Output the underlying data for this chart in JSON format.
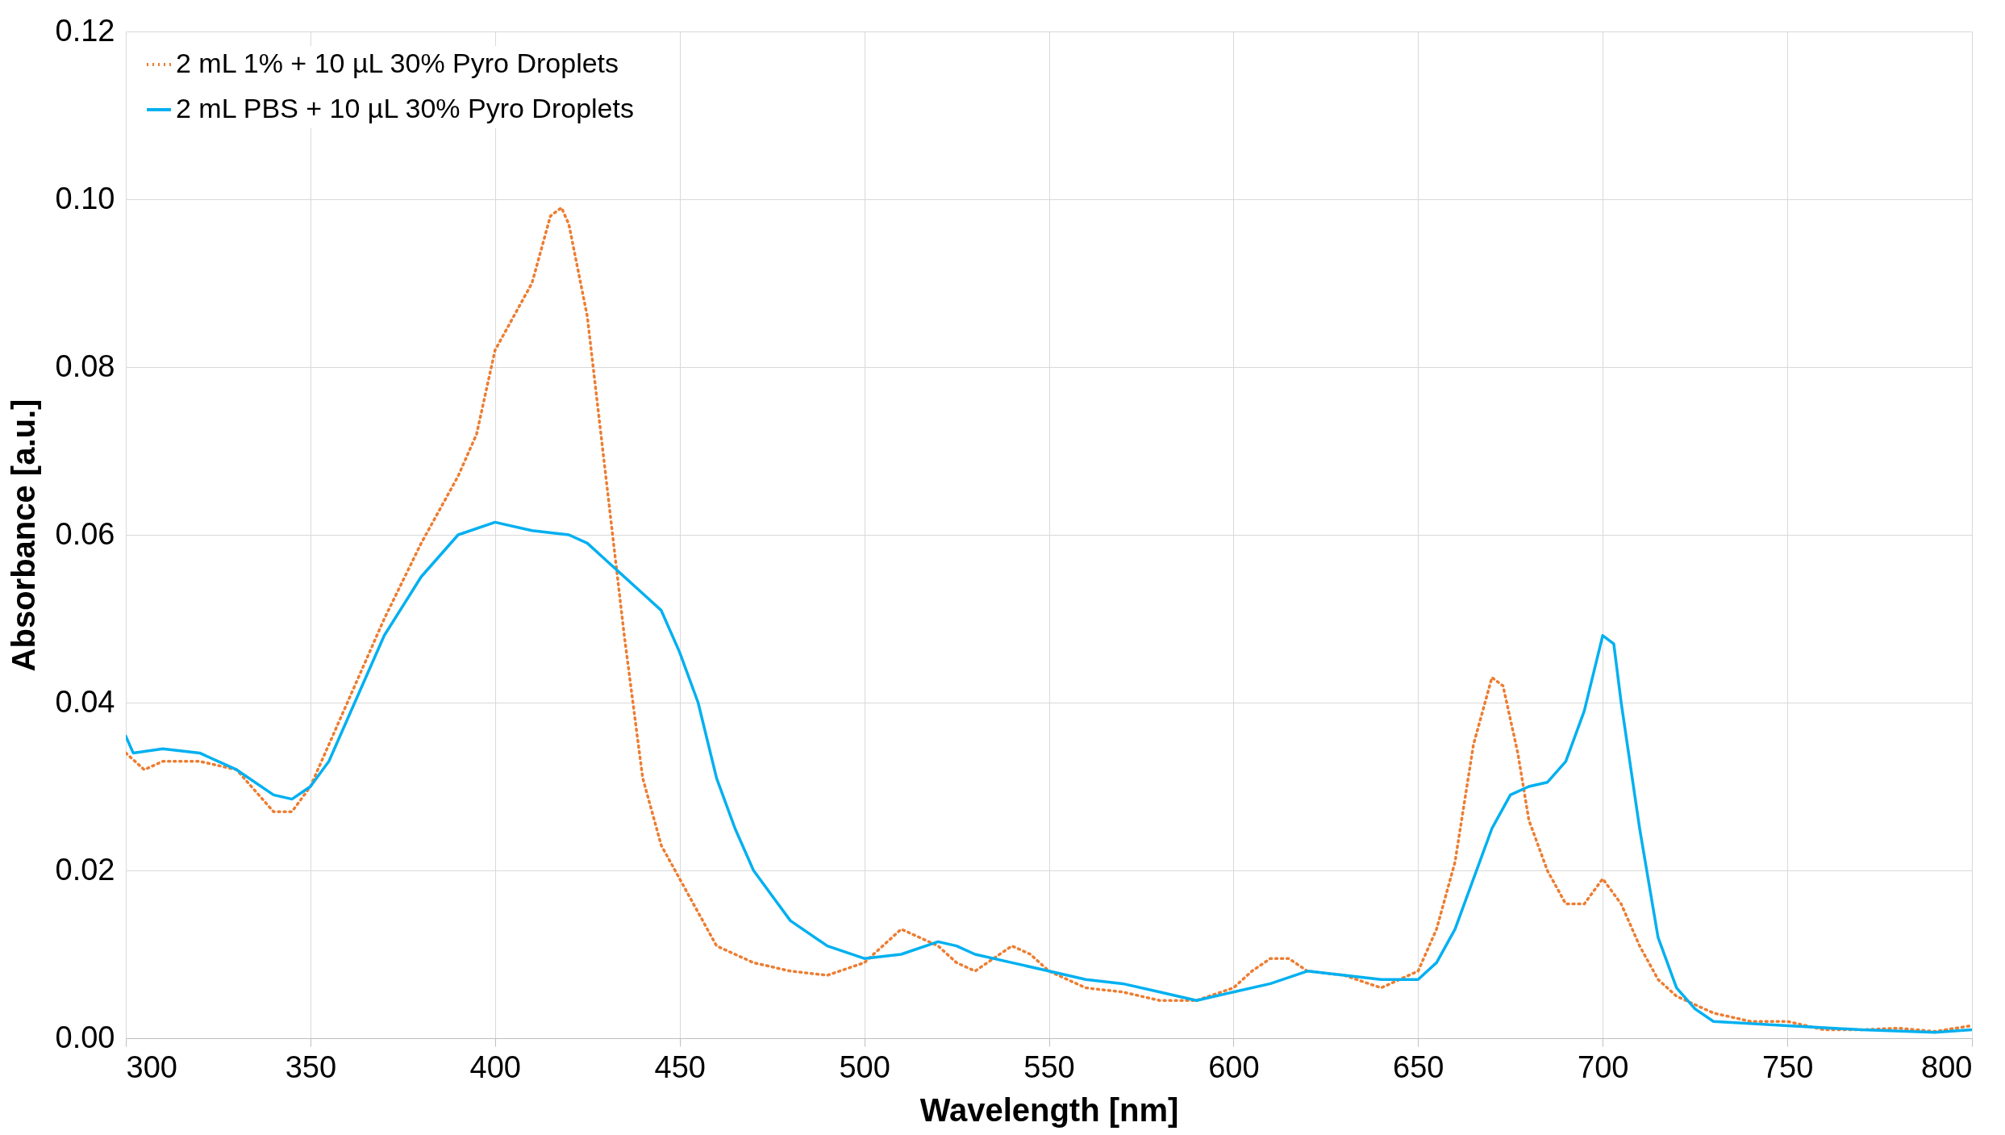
{
  "chart_data": {
    "type": "line",
    "xlabel": "Wavelength [nm]",
    "ylabel": "Absorbance [a.u.]",
    "xlim": [
      300,
      800
    ],
    "xticks": [
      300,
      350,
      400,
      450,
      500,
      550,
      600,
      650,
      700,
      750,
      800
    ],
    "ylim": [
      0,
      0.12
    ],
    "yticks": [
      {
        "value": 0,
        "label": "0.00"
      },
      {
        "value": 0.02,
        "label": "0.02"
      },
      {
        "value": 0.04,
        "label": "0.04"
      },
      {
        "value": 0.06,
        "label": "0.06"
      },
      {
        "value": 0.08,
        "label": "0.08"
      },
      {
        "value": 0.1,
        "label": "0.10"
      },
      {
        "value": 0.12,
        "label": "0.12"
      }
    ],
    "grid": true,
    "legend": "top left",
    "marker": "none",
    "series": [
      {
        "name": "2 mL 1% + 10 µL 30% Pyro Droplets",
        "color": "#ed7d31",
        "line_style": "dotted",
        "x": [
          300,
          305,
          310,
          320,
          330,
          340,
          345,
          350,
          360,
          370,
          380,
          390,
          395,
          400,
          405,
          410,
          415,
          418,
          420,
          425,
          430,
          435,
          440,
          445,
          450,
          455,
          460,
          470,
          480,
          490,
          500,
          505,
          510,
          515,
          520,
          525,
          530,
          540,
          545,
          550,
          560,
          570,
          580,
          590,
          600,
          605,
          610,
          615,
          620,
          630,
          640,
          650,
          655,
          660,
          665,
          670,
          673,
          677,
          680,
          685,
          690,
          695,
          700,
          705,
          710,
          715,
          720,
          730,
          740,
          750,
          760,
          770,
          780,
          790,
          800
        ],
        "values": [
          0.034,
          0.032,
          0.033,
          0.033,
          0.032,
          0.027,
          0.027,
          0.03,
          0.04,
          0.05,
          0.059,
          0.067,
          0.072,
          0.082,
          0.086,
          0.09,
          0.098,
          0.099,
          0.097,
          0.086,
          0.067,
          0.048,
          0.031,
          0.023,
          0.019,
          0.015,
          0.011,
          0.009,
          0.008,
          0.0075,
          0.009,
          0.011,
          0.013,
          0.012,
          0.011,
          0.009,
          0.008,
          0.011,
          0.01,
          0.008,
          0.006,
          0.0055,
          0.0045,
          0.0045,
          0.006,
          0.008,
          0.0095,
          0.0095,
          0.008,
          0.0075,
          0.006,
          0.008,
          0.013,
          0.021,
          0.035,
          0.043,
          0.042,
          0.034,
          0.026,
          0.02,
          0.016,
          0.016,
          0.019,
          0.016,
          0.011,
          0.007,
          0.005,
          0.003,
          0.002,
          0.002,
          0.001,
          0.001,
          0.0012,
          0.0008,
          0.0015
        ]
      },
      {
        "name": "2 mL PBS + 10 µL 30% Pyro Droplets",
        "color": "#00b0f0",
        "line_style": "solid",
        "x": [
          300,
          302,
          310,
          320,
          330,
          340,
          345,
          350,
          355,
          360,
          370,
          380,
          390,
          400,
          410,
          420,
          425,
          430,
          440,
          445,
          450,
          455,
          460,
          465,
          470,
          475,
          480,
          490,
          500,
          510,
          520,
          525,
          530,
          540,
          550,
          560,
          570,
          580,
          590,
          600,
          610,
          620,
          630,
          640,
          650,
          655,
          660,
          665,
          670,
          675,
          680,
          685,
          690,
          695,
          700,
          703,
          705,
          710,
          715,
          720,
          725,
          730,
          750,
          770,
          790,
          800
        ],
        "values": [
          0.036,
          0.034,
          0.0345,
          0.034,
          0.032,
          0.029,
          0.0285,
          0.03,
          0.033,
          0.038,
          0.048,
          0.055,
          0.06,
          0.0615,
          0.0605,
          0.06,
          0.059,
          0.057,
          0.053,
          0.051,
          0.046,
          0.04,
          0.031,
          0.025,
          0.02,
          0.017,
          0.014,
          0.011,
          0.0095,
          0.01,
          0.0115,
          0.011,
          0.01,
          0.009,
          0.008,
          0.007,
          0.0065,
          0.0055,
          0.0045,
          0.0055,
          0.0065,
          0.008,
          0.0075,
          0.007,
          0.007,
          0.009,
          0.013,
          0.019,
          0.025,
          0.029,
          0.03,
          0.0305,
          0.033,
          0.039,
          0.048,
          0.047,
          0.04,
          0.025,
          0.012,
          0.006,
          0.0035,
          0.002,
          0.0015,
          0.001,
          0.0007,
          0.001
        ]
      }
    ]
  }
}
